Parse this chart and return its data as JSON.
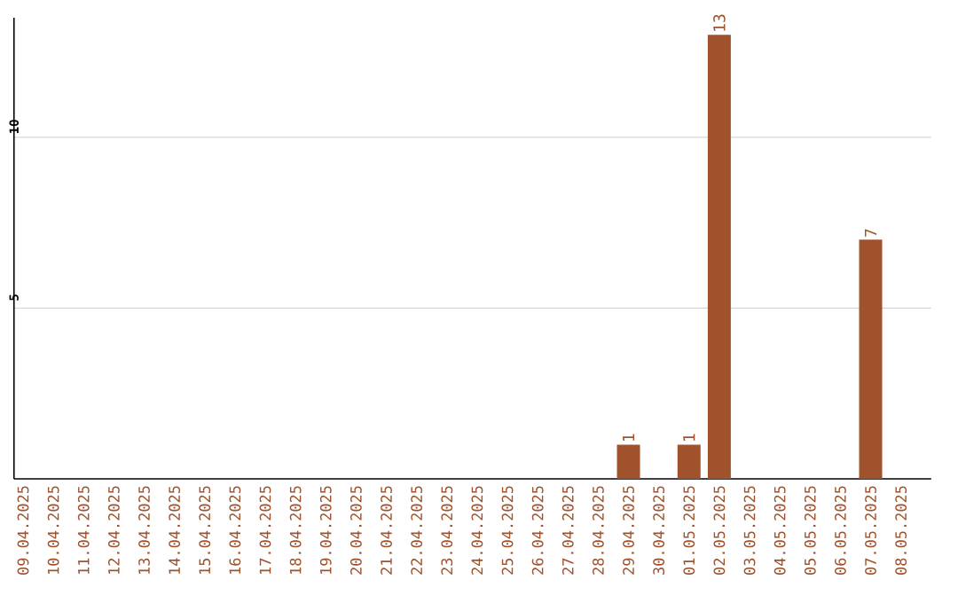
{
  "chart_data": {
    "type": "bar",
    "categories": [
      "09.04.2025",
      "10.04.2025",
      "11.04.2025",
      "12.04.2025",
      "13.04.2025",
      "14.04.2025",
      "15.04.2025",
      "16.04.2025",
      "17.04.2025",
      "18.04.2025",
      "19.04.2025",
      "20.04.2025",
      "21.04.2025",
      "22.04.2025",
      "23.04.2025",
      "24.04.2025",
      "25.04.2025",
      "26.04.2025",
      "27.04.2025",
      "28.04.2025",
      "29.04.2025",
      "30.04.2025",
      "01.05.2025",
      "02.05.2025",
      "03.05.2025",
      "04.05.2025",
      "05.05.2025",
      "06.05.2025",
      "07.05.2025",
      "08.05.2025"
    ],
    "values": [
      0,
      0,
      0,
      0,
      0,
      0,
      0,
      0,
      0,
      0,
      0,
      0,
      0,
      0,
      0,
      0,
      0,
      0,
      0,
      0,
      1,
      0,
      1,
      13,
      0,
      0,
      0,
      0,
      7,
      0
    ],
    "value_labels": [
      null,
      null,
      null,
      null,
      null,
      null,
      null,
      null,
      null,
      null,
      null,
      null,
      null,
      null,
      null,
      null,
      null,
      null,
      null,
      null,
      "1",
      null,
      "1",
      "13",
      null,
      null,
      null,
      null,
      "7",
      null
    ],
    "color": "#a0522d",
    "ylim": [
      0,
      13.5
    ],
    "yticks": [
      5,
      10
    ],
    "grid": "y"
  }
}
